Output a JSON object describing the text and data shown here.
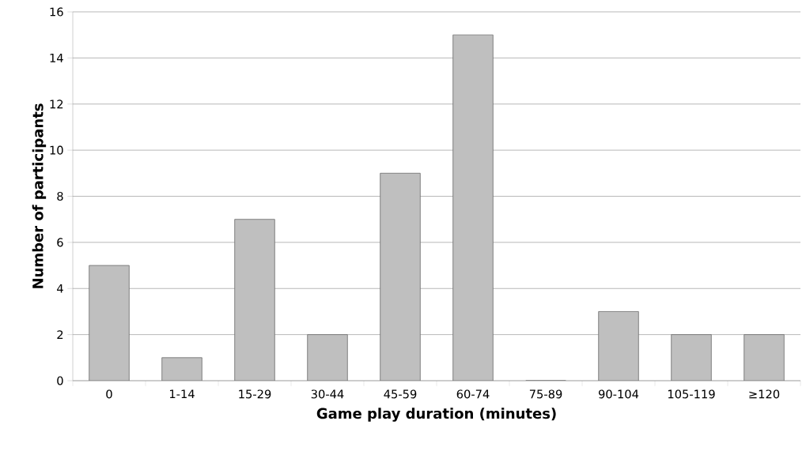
{
  "chart_data": {
    "type": "bar",
    "xlabel": "Game play duration  (minutes)",
    "ylabel": "Number of participants",
    "categories": [
      "0",
      "1-14",
      "15-29",
      "30-44",
      "45-59",
      "60-74",
      "75-89",
      "90-104",
      "105-119",
      "≥120"
    ],
    "values": [
      5,
      1,
      7,
      2,
      9,
      15,
      0,
      3,
      2,
      2
    ],
    "color": "#bfbfbf",
    "ylim": [
      0,
      16
    ],
    "yticks": [
      0,
      2,
      4,
      6,
      8,
      10,
      12,
      14,
      16
    ],
    "grid": "y"
  }
}
